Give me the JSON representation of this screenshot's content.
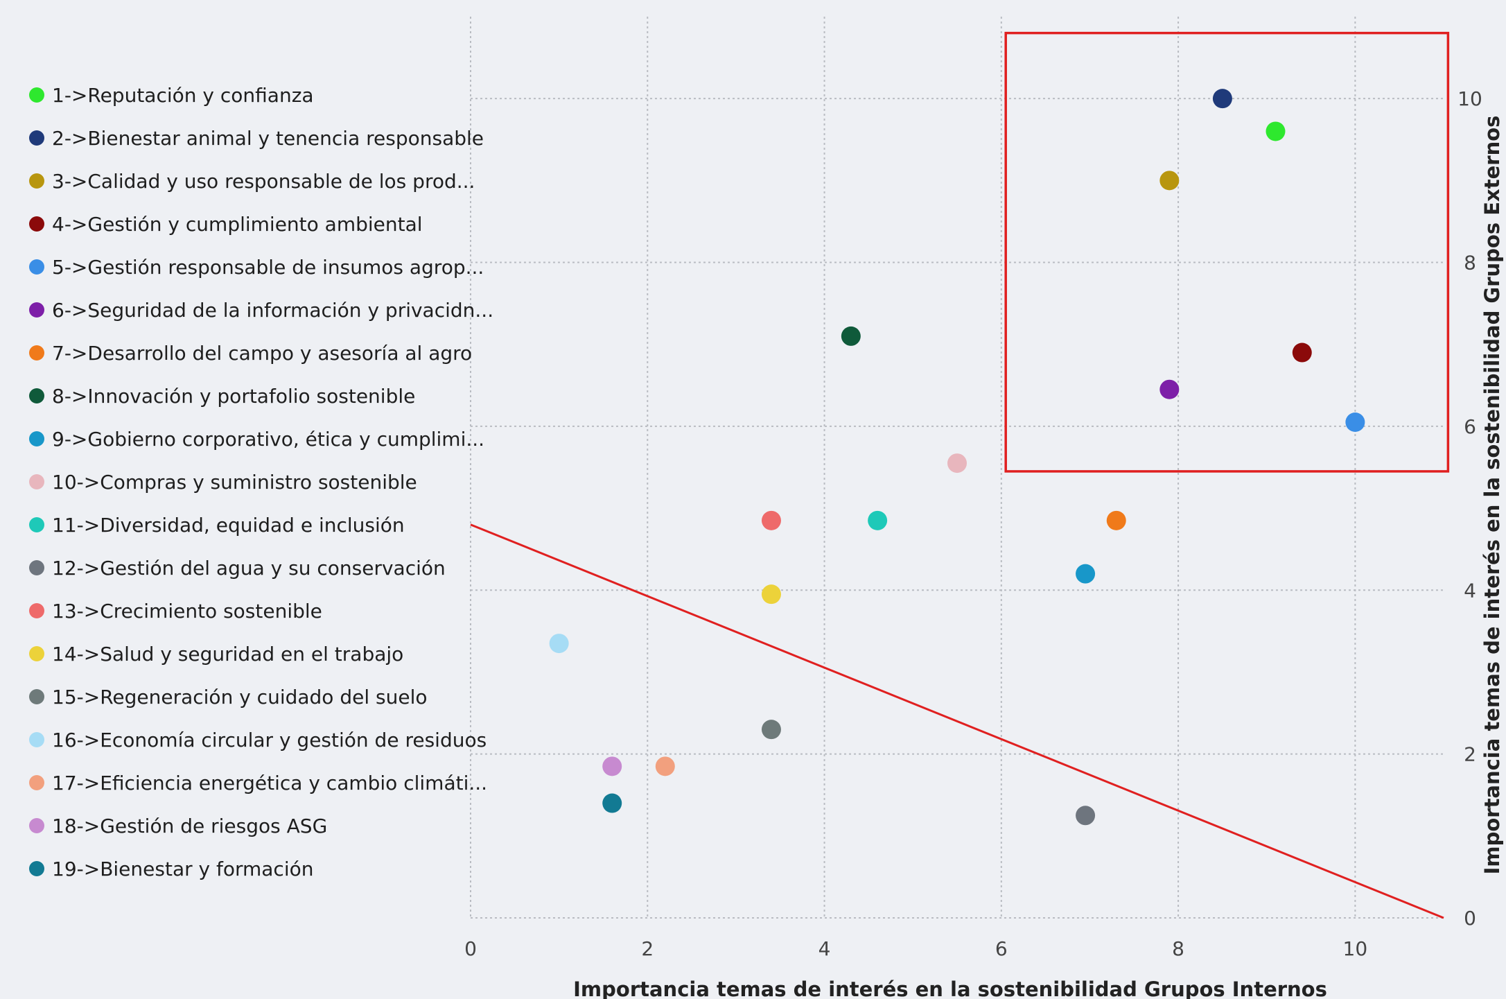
{
  "chart_data": {
    "type": "scatter",
    "xlabel": "Importancia temas de interés en la sostenibilidad Grupos Internos",
    "ylabel": "Importancia temas de interés en la sostenibilidad Grupos Externos",
    "xlim": [
      0,
      11
    ],
    "ylim": [
      0,
      11
    ],
    "x_ticks": [
      "0",
      "2",
      "4",
      "6",
      "8",
      "10"
    ],
    "y_ticks": [
      "0",
      "2",
      "4",
      "6",
      "8",
      "10"
    ],
    "y_axis_position": "right",
    "grid": true,
    "grid_style": "dotted",
    "legend_position": "left",
    "annotations": {
      "reference_line": {
        "from": [
          0,
          4.8
        ],
        "to": [
          11,
          0
        ],
        "color": "#e02020"
      },
      "highlight_box": {
        "x_range": [
          6.05,
          11.05
        ],
        "y_range": [
          5.45,
          10.8
        ],
        "color": "#e02020"
      }
    },
    "points": [
      {
        "label": "1->Reputación y confianza",
        "x": 9.1,
        "y": 9.6,
        "color": "#2ee82e"
      },
      {
        "label": "2->Bienestar animal y tenencia responsable",
        "x": 8.5,
        "y": 10.0,
        "color": "#1f3a7a"
      },
      {
        "label": "3->Calidad y uso responsable de los prod...",
        "x": 7.9,
        "y": 9.0,
        "color": "#b8960f"
      },
      {
        "label": "4->Gestión y cumplimiento ambiental",
        "x": 9.4,
        "y": 6.9,
        "color": "#8b0a0a"
      },
      {
        "label": "5->Gestión responsable de insumos agrop...",
        "x": 10.0,
        "y": 6.05,
        "color": "#3a8ee6"
      },
      {
        "label": "6->Seguridad de la información y privacidn...",
        "x": 7.9,
        "y": 6.45,
        "color": "#7d1fa8"
      },
      {
        "label": "7->Desarrollo del campo y asesoría al agro",
        "x": 7.3,
        "y": 4.85,
        "color": "#f07a1a"
      },
      {
        "label": "8->Innovación y portafolio sostenible",
        "x": 4.3,
        "y": 7.1,
        "color": "#0f5a3a"
      },
      {
        "label": "9->Gobierno corporativo, ética y cumplimi...",
        "x": 6.95,
        "y": 4.2,
        "color": "#1897c9"
      },
      {
        "label": "10->Compras y suministro sostenible",
        "x": 5.5,
        "y": 5.55,
        "color": "#e8b6bd"
      },
      {
        "label": "11->Diversidad, equidad e inclusión",
        "x": 4.6,
        "y": 4.85,
        "color": "#1ec9b8"
      },
      {
        "label": "12->Gestión del agua y su conservación",
        "x": 6.95,
        "y": 1.25,
        "color": "#6e757e"
      },
      {
        "label": "13->Crecimiento sostenible",
        "x": 3.4,
        "y": 4.85,
        "color": "#ee6a6a"
      },
      {
        "label": "14->Salud y seguridad en el trabajo",
        "x": 3.4,
        "y": 3.95,
        "color": "#ecd23a"
      },
      {
        "label": "15->Regeneración y cuidado del suelo",
        "x": 3.4,
        "y": 2.3,
        "color": "#6e7a7a"
      },
      {
        "label": "16->Economía circular y gestión de residuos",
        "x": 1.0,
        "y": 3.35,
        "color": "#a6dcf5"
      },
      {
        "label": "17->Eficiencia energética y cambio climáti...",
        "x": 2.2,
        "y": 1.85,
        "color": "#f2a07e"
      },
      {
        "label": "18->Gestión de riesgos ASG",
        "x": 1.6,
        "y": 1.85,
        "color": "#c78ad0"
      },
      {
        "label": "19->Bienestar y formación",
        "x": 1.6,
        "y": 1.4,
        "color": "#127a93"
      }
    ]
  }
}
